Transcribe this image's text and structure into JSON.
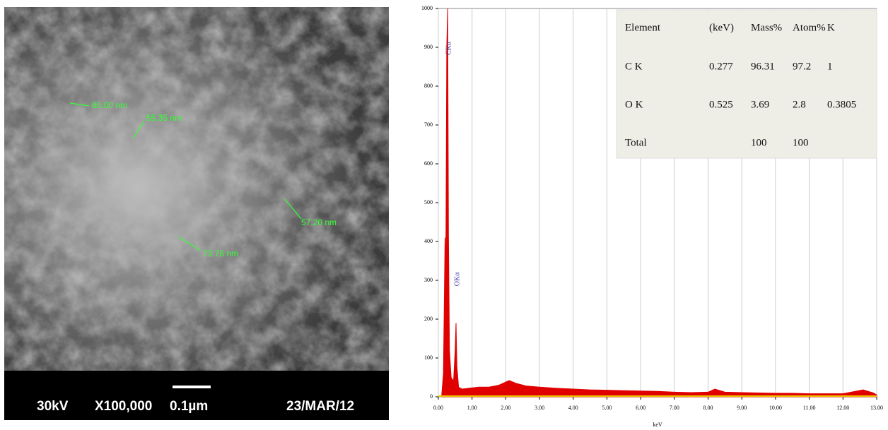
{
  "sem_image": {
    "annotations": [
      "66.00 nm",
      "55.35 nm",
      "57.20 nm",
      "73.76 nm"
    ],
    "info_bar": [
      "30kV",
      "X100,000",
      "0.1µm",
      "23/MAR/12"
    ]
  },
  "chart_data": {
    "type": "area",
    "xlabel": "keV",
    "x": [
      0.1,
      0.15,
      0.2,
      0.22,
      0.25,
      0.277,
      0.3,
      0.33,
      0.38,
      0.45,
      0.5,
      0.525,
      0.55,
      0.6,
      0.7,
      0.9,
      1.2,
      1.5,
      1.8,
      2.0,
      2.1,
      2.3,
      2.6,
      3.0,
      3.5,
      4.0,
      4.5,
      5.0,
      5.5,
      6.0,
      6.5,
      7.0,
      7.5,
      8.0,
      8.2,
      8.5,
      9.0,
      9.5,
      10.0,
      10.5,
      11.0,
      11.5,
      12.0,
      12.6,
      12.9,
      13.0
    ],
    "series": [
      {
        "color": "#e00000",
        "values": [
          5,
          60,
          410,
          300,
          900,
          1000,
          420,
          120,
          50,
          40,
          120,
          190,
          80,
          25,
          20,
          22,
          25,
          25,
          30,
          38,
          42,
          35,
          28,
          25,
          22,
          20,
          18,
          17,
          16,
          15,
          14,
          12,
          11,
          12,
          20,
          12,
          11,
          10,
          9,
          9,
          8,
          8,
          8,
          18,
          10,
          5
        ]
      }
    ],
    "peak_labels": [
      {
        "text": "CKα",
        "x": 0.277,
        "y": 880
      },
      {
        "text": "OKα",
        "x": 0.525,
        "y": 285
      }
    ],
    "xlim": [
      0,
      13
    ],
    "ylim": [
      0,
      1000
    ],
    "xticks": [
      {
        "value": 0,
        "label": "0.00"
      },
      {
        "value": 1,
        "label": "1.00"
      },
      {
        "value": 2,
        "label": "2.00"
      },
      {
        "value": 3,
        "label": "3.00"
      },
      {
        "value": 4,
        "label": "4.00"
      },
      {
        "value": 5,
        "label": "5.00"
      },
      {
        "value": 6,
        "label": "6.00"
      },
      {
        "value": 7,
        "label": "7.00"
      },
      {
        "value": 8,
        "label": "8.00"
      },
      {
        "value": 9,
        "label": "9.00"
      },
      {
        "value": 10,
        "label": "10.00"
      },
      {
        "value": 11,
        "label": "11.00"
      },
      {
        "value": 12,
        "label": "12.00"
      },
      {
        "value": 13,
        "label": "13.00"
      }
    ],
    "yticks": [
      0,
      100,
      200,
      300,
      400,
      500,
      600,
      700,
      800,
      900,
      1000
    ],
    "grid": true,
    "table": {
      "header": [
        "Element",
        "(keV)",
        "Mass%",
        "Atom%",
        "K"
      ],
      "rows": [
        {
          "element": "C  K",
          "kev": 0.277,
          "mass": 96.31,
          "atom": 97.2,
          "k": 1
        },
        {
          "element": "O  K",
          "kev": 0.525,
          "mass": 3.69,
          "atom": 2.8,
          "k": 0.3805
        },
        {
          "element": "Total",
          "mass": 100,
          "atom": 100
        }
      ]
    }
  }
}
